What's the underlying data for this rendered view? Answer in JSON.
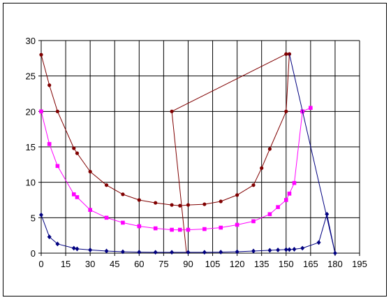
{
  "chart_data": {
    "type": "line",
    "title": "",
    "xlabel": "",
    "ylabel": "",
    "xlim": [
      0,
      195
    ],
    "ylim": [
      0,
      30
    ],
    "xticks": [
      0,
      15,
      30,
      45,
      60,
      75,
      90,
      105,
      120,
      135,
      150,
      165,
      180,
      195
    ],
    "yticks": [
      0,
      5,
      10,
      15,
      20,
      25,
      30
    ],
    "grid": true,
    "legend": "none",
    "series": [
      {
        "color": "#800000",
        "marker": "circle",
        "x": [
          0,
          5,
          10,
          20,
          22,
          30,
          40,
          50,
          60,
          70,
          80,
          85,
          90,
          100,
          110,
          120,
          130,
          135,
          140,
          150,
          152,
          150,
          80
        ],
        "y": [
          28,
          23.7,
          20,
          14.8,
          14.1,
          11.5,
          9.6,
          8.3,
          7.5,
          7.1,
          6.8,
          6.7,
          6.8,
          6.9,
          7.3,
          8.2,
          9.6,
          12,
          14.7,
          20,
          28.1,
          28.1,
          20
        ],
        "trailing_segment": {
          "x": [
            80,
            89
          ],
          "y": [
            20,
            0
          ]
        }
      },
      {
        "color": "#ff00ff",
        "marker": "square",
        "x": [
          0,
          5,
          10,
          20,
          22,
          30,
          40,
          50,
          60,
          70,
          80,
          85,
          90,
          100,
          110,
          120,
          130,
          140,
          145,
          150,
          152,
          155,
          160,
          165
        ],
        "y": [
          20,
          15.4,
          12.3,
          8.3,
          7.9,
          6.1,
          5,
          4.3,
          3.8,
          3.5,
          3.3,
          3.3,
          3.3,
          3.4,
          3.6,
          4,
          4.5,
          5.5,
          6.5,
          7.5,
          8.4,
          9.9,
          20,
          20.5
        ]
      },
      {
        "color": "#000080",
        "marker": "diamond",
        "x": [
          0,
          5,
          10,
          20,
          22,
          30,
          40,
          50,
          60,
          70,
          80,
          90,
          100,
          110,
          120,
          130,
          140,
          145,
          150,
          152,
          155,
          160,
          170,
          175,
          180
        ],
        "y": [
          5.4,
          2.3,
          1.3,
          0.7,
          0.6,
          0.45,
          0.3,
          0.2,
          0.15,
          0.12,
          0.12,
          0.12,
          0.12,
          0.15,
          0.2,
          0.3,
          0.4,
          0.45,
          0.5,
          0.5,
          0.55,
          0.7,
          1.5,
          5.5,
          0
        ],
        "lead_segment": {
          "x": [
            152,
            180
          ],
          "y": [
            28.1,
            0
          ]
        }
      }
    ]
  }
}
